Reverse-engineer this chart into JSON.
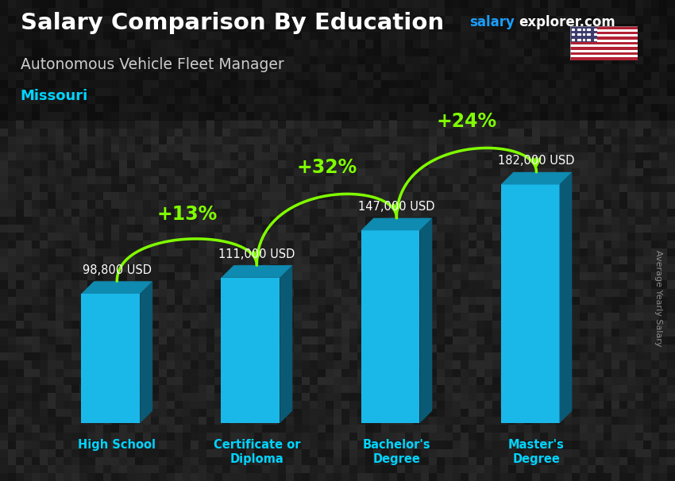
{
  "title": "Salary Comparison By Education",
  "subtitle": "Autonomous Vehicle Fleet Manager",
  "location": "Missouri",
  "ylabel": "Average Yearly Salary",
  "categories": [
    "High School",
    "Certificate or\nDiploma",
    "Bachelor's\nDegree",
    "Master's\nDegree"
  ],
  "values": [
    98800,
    111000,
    147000,
    182000
  ],
  "value_labels": [
    "98,800 USD",
    "111,000 USD",
    "147,000 USD",
    "182,000 USD"
  ],
  "pct_changes": [
    "+13%",
    "+32%",
    "+24%"
  ],
  "color_front": "#1ab8e8",
  "color_side": "#0a5a75",
  "color_top": "#0f8ab0",
  "bg_color": "#1a1a1a",
  "title_color": "#ffffff",
  "subtitle_color": "#dddddd",
  "location_color": "#00d4ff",
  "salary_color": "#1a9fff",
  "explorer_color": "#ffffff",
  "value_label_color": "#ffffff",
  "pct_color": "#80ff00",
  "xlabel_color": "#00d4ff",
  "ylabel_color": "#aaaaaa",
  "ylim": [
    0,
    220000
  ],
  "figsize": [
    8.5,
    6.06
  ]
}
